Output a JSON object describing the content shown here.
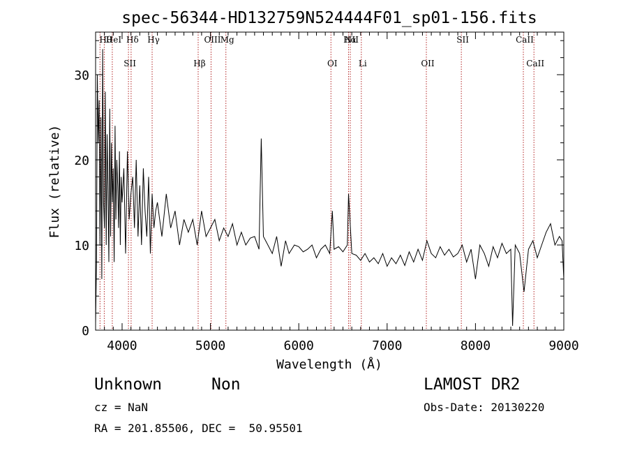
{
  "chart_data": {
    "type": "line",
    "title": "spec-56344-HD132759N524444F01_sp01-156.fits",
    "xlabel": "Wavelength (Å)",
    "ylabel": "Flux (relative)",
    "xlim": [
      3700,
      9000
    ],
    "ylim": [
      0,
      35
    ],
    "xticks": [
      4000,
      5000,
      6000,
      7000,
      8000,
      9000
    ],
    "yticks": [
      0,
      10,
      20,
      30
    ],
    "line_color": "#000000",
    "marker_color": "#b22222",
    "series": [
      {
        "x": [
          3700,
          3710,
          3720,
          3730,
          3740,
          3750,
          3760,
          3770,
          3780,
          3790,
          3800,
          3810,
          3820,
          3830,
          3840,
          3850,
          3860,
          3870,
          3880,
          3890,
          3900,
          3910,
          3920,
          3930,
          3940,
          3950,
          3960,
          3970,
          3980,
          3990,
          4000,
          4020,
          4040,
          4060,
          4080,
          4100,
          4120,
          4140,
          4160,
          4180,
          4200,
          4220,
          4240,
          4260,
          4280,
          4300,
          4320,
          4340,
          4360,
          4380,
          4400,
          4450,
          4500,
          4550,
          4600,
          4650,
          4700,
          4750,
          4800,
          4850,
          4900,
          4950,
          5000,
          5050,
          5100,
          5150,
          5200,
          5250,
          5300,
          5350,
          5400,
          5450,
          5500,
          5550,
          5575,
          5600,
          5650,
          5700,
          5750,
          5800,
          5850,
          5890,
          5950,
          6000,
          6050,
          6100,
          6150,
          6200,
          6250,
          6300,
          6350,
          6380,
          6400,
          6450,
          6500,
          6550,
          6563,
          6600,
          6650,
          6700,
          6750,
          6800,
          6850,
          6900,
          6950,
          7000,
          7050,
          7100,
          7150,
          7200,
          7250,
          7300,
          7350,
          7400,
          7450,
          7500,
          7550,
          7600,
          7650,
          7700,
          7750,
          7800,
          7850,
          7900,
          7950,
          8000,
          8050,
          8100,
          8150,
          8200,
          8250,
          8300,
          8350,
          8400,
          8420,
          8450,
          8500,
          8550,
          8600,
          8650,
          8700,
          8750,
          8800,
          8850,
          8900,
          8950,
          8980,
          9000
        ],
        "values": [
          0.8,
          8,
          30,
          22,
          27,
          10,
          25,
          6,
          33,
          15,
          12,
          28,
          10,
          23,
          17,
          8,
          26,
          11,
          22,
          15,
          19,
          8,
          24,
          13,
          20,
          17,
          12,
          21,
          10,
          18,
          15,
          19,
          9,
          21,
          13,
          16,
          18,
          12,
          20,
          11,
          17,
          10,
          19,
          14,
          11,
          18,
          9,
          16,
          12,
          14,
          15,
          11,
          16,
          12,
          14,
          10,
          13,
          11.5,
          13,
          10,
          14,
          11,
          12,
          13,
          10.5,
          12,
          11,
          12.5,
          10,
          11.5,
          10,
          10.8,
          11,
          9.5,
          22.5,
          11,
          10,
          9,
          11,
          7.5,
          10.5,
          9,
          10,
          9.8,
          9.2,
          9.5,
          10,
          8.5,
          9.5,
          10,
          9,
          14,
          9.5,
          9.8,
          9.2,
          10,
          16,
          9,
          8.8,
          8.2,
          9,
          8,
          8.5,
          7.8,
          9,
          7.5,
          8.5,
          7.8,
          8.8,
          7.6,
          9.2,
          8,
          9.5,
          8.2,
          10.5,
          9,
          8.5,
          9.8,
          8.8,
          9.5,
          8.6,
          9,
          10,
          8,
          9.5,
          6,
          10,
          9,
          7.5,
          9.8,
          8.5,
          10.2,
          9,
          9.5,
          0.5,
          10,
          9,
          4.5,
          9.5,
          10.5,
          8.5,
          10,
          11.5,
          12.5,
          10,
          11,
          10.5,
          6
        ]
      }
    ],
    "lines_top": [
      {
        "label": "Hθ",
        "x": 3798
      },
      {
        "label": "HeI",
        "x": 3889
      },
      {
        "label": "Hδ",
        "x": 4102
      },
      {
        "label": "Hγ",
        "x": 4340
      },
      {
        "label": "OIII",
        "x": 5007
      },
      {
        "label": "Mg",
        "x": 5175
      },
      {
        "label": "NII",
        "x": 6583
      },
      {
        "label": "Hα",
        "x": 6563
      },
      {
        "label": "SII",
        "x": 7840
      },
      {
        "label": "CaII",
        "x": 8542
      }
    ],
    "lines_bottom": [
      {
        "label": "SII",
        "x": 4072
      },
      {
        "label": "Hβ",
        "x": 4861
      },
      {
        "label": "OI",
        "x": 6364
      },
      {
        "label": "Li",
        "x": 6708
      },
      {
        "label": "OII",
        "x": 7444
      },
      {
        "label": "CaII",
        "x": 8662
      }
    ],
    "marker_lines_x": [
      3750,
      3798,
      3889,
      4072,
      4102,
      4340,
      4861,
      5007,
      5175,
      6364,
      6563,
      6583,
      6708,
      7444,
      7840,
      8542,
      8662
    ]
  },
  "info": {
    "object_class": "Unknown",
    "object_subclass": "Non",
    "cz": "cz = NaN",
    "radec": "RA = 201.85506, DEC =  50.95501",
    "survey": "LAMOST DR2",
    "obs_date": "Obs-Date: 20130220"
  }
}
